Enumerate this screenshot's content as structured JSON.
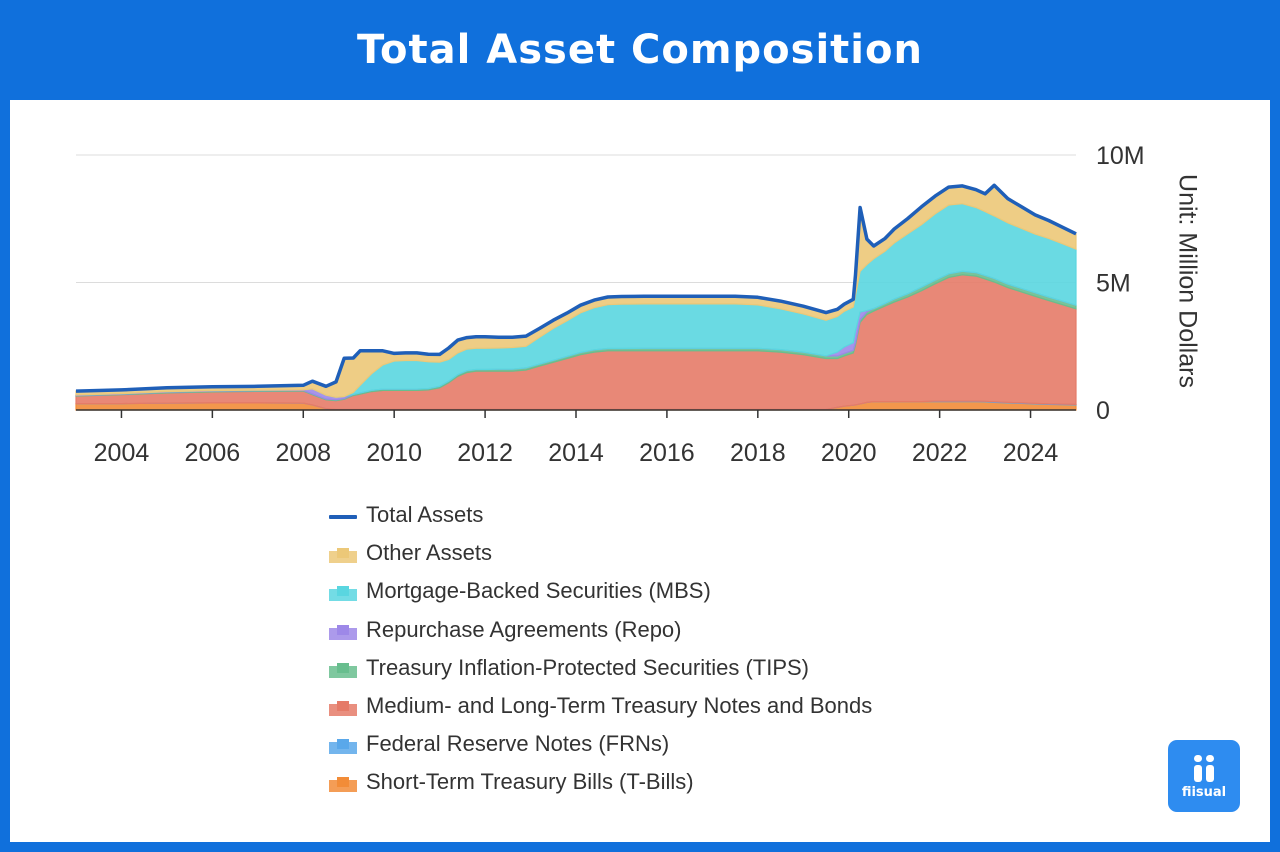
{
  "header": {
    "title": "Total Asset Composition"
  },
  "brand": {
    "logo_text": "fiisual",
    "background": "#1070dc",
    "logo_color": "#2e8cf0"
  },
  "chart_data": {
    "type": "area",
    "stacked": true,
    "x_axis": {
      "type": "time",
      "ticks": [
        "2004",
        "2006",
        "2008",
        "2010",
        "2012",
        "2014",
        "2016",
        "2018",
        "2020",
        "2022",
        "2024"
      ],
      "range": [
        2003.0,
        2025.0
      ]
    },
    "y_axis": {
      "position": "right",
      "ticks": [
        "0",
        "5M",
        "10M"
      ],
      "range": [
        0,
        10
      ],
      "unit_label": "Unit: Million Dollars",
      "grid": true
    },
    "x": [
      2003.0,
      2004.0,
      2005.0,
      2006.0,
      2007.0,
      2008.0,
      2008.2,
      2008.5,
      2008.72,
      2008.9,
      2009.1,
      2009.25,
      2009.5,
      2009.75,
      2010.0,
      2010.25,
      2010.5,
      2010.75,
      2011.0,
      2011.2,
      2011.4,
      2011.6,
      2011.8,
      2012.0,
      2012.3,
      2012.6,
      2012.9,
      2013.2,
      2013.5,
      2013.8,
      2014.1,
      2014.4,
      2014.7,
      2015.0,
      2015.5,
      2016.0,
      2016.5,
      2017.0,
      2017.5,
      2018.0,
      2018.5,
      2019.0,
      2019.5,
      2019.75,
      2019.9,
      2020.1,
      2020.15,
      2020.25,
      2020.4,
      2020.55,
      2020.8,
      2021.0,
      2021.3,
      2021.6,
      2021.9,
      2022.2,
      2022.5,
      2022.8,
      2023.0,
      2023.2,
      2023.5,
      2023.8,
      2024.1,
      2024.4,
      2024.7,
      2025.0
    ],
    "series": [
      {
        "name": "Short-Term Treasury Bills (T-Bills)",
        "color": "#f28c38",
        "values": [
          0.25,
          0.25,
          0.27,
          0.28,
          0.28,
          0.27,
          0.2,
          0.05,
          0.02,
          0.02,
          0.02,
          0.02,
          0.02,
          0.02,
          0.02,
          0.02,
          0.02,
          0.02,
          0.02,
          0.02,
          0.02,
          0.02,
          0.02,
          0.02,
          0.02,
          0.02,
          0.02,
          0.02,
          0.02,
          0.02,
          0.02,
          0.02,
          0.02,
          0.02,
          0.02,
          0.02,
          0.02,
          0.02,
          0.02,
          0.02,
          0.02,
          0.02,
          0.02,
          0.1,
          0.15,
          0.19,
          0.2,
          0.24,
          0.3,
          0.33,
          0.33,
          0.33,
          0.33,
          0.33,
          0.33,
          0.33,
          0.33,
          0.33,
          0.32,
          0.3,
          0.28,
          0.26,
          0.24,
          0.22,
          0.21,
          0.2
        ]
      },
      {
        "name": "Federal Reserve Notes (FRNs)",
        "color": "#5aa8ea",
        "values": [
          0,
          0,
          0,
          0,
          0,
          0,
          0,
          0,
          0,
          0,
          0,
          0,
          0,
          0,
          0,
          0,
          0,
          0,
          0,
          0,
          0,
          0,
          0,
          0,
          0,
          0,
          0,
          0,
          0,
          0,
          0,
          0,
          0,
          0,
          0,
          0,
          0,
          0,
          0,
          0,
          0,
          0,
          0,
          0,
          0,
          0,
          0,
          0,
          0,
          0,
          0,
          0,
          0,
          0,
          0.02,
          0.02,
          0.02,
          0.02,
          0.02,
          0.02,
          0.02,
          0.02,
          0.02,
          0.02,
          0.02,
          0.02
        ]
      },
      {
        "name": "Medium- and Long-Term Treasury Notes and Bonds",
        "color": "#e57b68",
        "values": [
          0.3,
          0.35,
          0.4,
          0.43,
          0.45,
          0.47,
          0.4,
          0.35,
          0.35,
          0.4,
          0.55,
          0.6,
          0.7,
          0.75,
          0.75,
          0.75,
          0.75,
          0.77,
          0.85,
          1.05,
          1.3,
          1.45,
          1.5,
          1.5,
          1.5,
          1.5,
          1.55,
          1.7,
          1.85,
          2.0,
          2.15,
          2.25,
          2.3,
          2.3,
          2.3,
          2.3,
          2.3,
          2.3,
          2.3,
          2.3,
          2.25,
          2.15,
          2.0,
          1.92,
          1.97,
          2.05,
          2.35,
          3.2,
          3.45,
          3.55,
          3.75,
          3.9,
          4.1,
          4.35,
          4.6,
          4.85,
          4.95,
          4.9,
          4.8,
          4.7,
          4.5,
          4.35,
          4.2,
          4.05,
          3.9,
          3.75
        ]
      },
      {
        "name": "Treasury Inflation-Protected Securities (TIPS)",
        "color": "#68be8e",
        "values": [
          0.02,
          0.02,
          0.03,
          0.03,
          0.03,
          0.03,
          0.03,
          0.03,
          0.03,
          0.03,
          0.04,
          0.05,
          0.05,
          0.05,
          0.05,
          0.05,
          0.05,
          0.05,
          0.06,
          0.06,
          0.07,
          0.07,
          0.07,
          0.07,
          0.08,
          0.08,
          0.08,
          0.08,
          0.08,
          0.08,
          0.09,
          0.09,
          0.09,
          0.09,
          0.1,
          0.1,
          0.1,
          0.1,
          0.1,
          0.1,
          0.1,
          0.1,
          0.1,
          0.1,
          0.1,
          0.1,
          0.1,
          0.1,
          0.1,
          0.1,
          0.1,
          0.12,
          0.13,
          0.14,
          0.14,
          0.14,
          0.14,
          0.14,
          0.14,
          0.14,
          0.14,
          0.14,
          0.14,
          0.14,
          0.14,
          0.14
        ]
      },
      {
        "name": "Repurchase Agreements (Repo)",
        "color": "#9d88e8",
        "values": [
          0.02,
          0.02,
          0.02,
          0.02,
          0.02,
          0.02,
          0.2,
          0.15,
          0.1,
          0.08,
          0,
          0,
          0,
          0,
          0,
          0,
          0,
          0,
          0,
          0,
          0,
          0,
          0,
          0,
          0,
          0,
          0,
          0,
          0,
          0,
          0,
          0,
          0,
          0,
          0,
          0,
          0,
          0,
          0,
          0,
          0,
          0,
          0,
          0.15,
          0.25,
          0.3,
          0.45,
          0.3,
          0.05,
          0,
          0,
          0,
          0,
          0,
          0,
          0,
          0,
          0,
          0,
          0,
          0,
          0,
          0,
          0,
          0,
          0
        ]
      },
      {
        "name": "Mortgage-Backed Securities (MBS)",
        "color": "#5ad6e0",
        "values": [
          0,
          0,
          0,
          0,
          0,
          0,
          0,
          0,
          0,
          0,
          0.08,
          0.3,
          0.65,
          0.95,
          1.1,
          1.12,
          1.12,
          1.05,
          0.95,
          0.85,
          0.85,
          0.85,
          0.83,
          0.83,
          0.83,
          0.85,
          0.85,
          1.05,
          1.25,
          1.4,
          1.55,
          1.65,
          1.72,
          1.74,
          1.74,
          1.74,
          1.74,
          1.74,
          1.74,
          1.7,
          1.6,
          1.5,
          1.4,
          1.4,
          1.4,
          1.4,
          1.4,
          1.6,
          1.8,
          1.95,
          2.05,
          2.2,
          2.35,
          2.45,
          2.6,
          2.7,
          2.65,
          2.55,
          2.5,
          2.45,
          2.4,
          2.35,
          2.3,
          2.3,
          2.25,
          2.2
        ]
      },
      {
        "name": "Other Assets",
        "color": "#ecc878",
        "values": [
          0.15,
          0.15,
          0.15,
          0.15,
          0.15,
          0.18,
          0.3,
          0.35,
          0.6,
          1.5,
          1.35,
          1.35,
          0.9,
          0.55,
          0.3,
          0.3,
          0.3,
          0.3,
          0.3,
          0.45,
          0.5,
          0.45,
          0.45,
          0.45,
          0.42,
          0.4,
          0.4,
          0.35,
          0.32,
          0.3,
          0.3,
          0.3,
          0.3,
          0.3,
          0.3,
          0.3,
          0.3,
          0.3,
          0.3,
          0.3,
          0.3,
          0.3,
          0.3,
          0.28,
          0.28,
          0.3,
          0.8,
          2.5,
          1.0,
          0.5,
          0.5,
          0.55,
          0.6,
          0.7,
          0.7,
          0.7,
          0.7,
          0.7,
          0.7,
          1.2,
          0.95,
          0.85,
          0.75,
          0.7,
          0.65,
          0.6
        ]
      },
      {
        "name": "Total Assets",
        "color": "#1f5fb8",
        "line": true
      }
    ]
  }
}
